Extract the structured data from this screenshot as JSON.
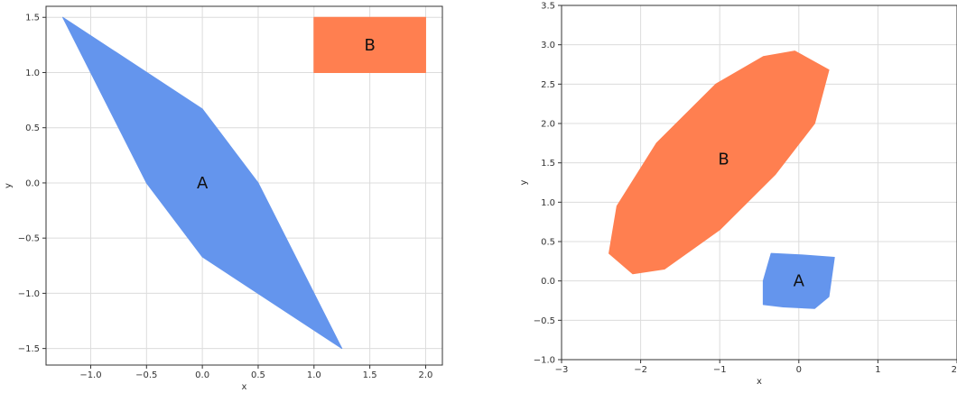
{
  "chart_data": [
    {
      "type": "area",
      "xlabel": "x",
      "ylabel": "y",
      "xlim": [
        -1.4,
        2.15
      ],
      "ylim": [
        -1.65,
        1.6
      ],
      "xticks": [
        -1.0,
        -0.5,
        0.0,
        0.5,
        1.0,
        1.5,
        2.0
      ],
      "xtick_labels": [
        "−1.0",
        "−0.5",
        "0.0",
        "0.5",
        "1.0",
        "1.5",
        "2.0"
      ],
      "yticks": [
        -1.5,
        -1.0,
        -0.5,
        0.0,
        0.5,
        1.0,
        1.5
      ],
      "ytick_labels": [
        "−1.5",
        "−1.0",
        "−0.5",
        "0.0",
        "0.5",
        "1.0",
        "1.5"
      ],
      "grid": true,
      "shapes": [
        {
          "label": "A",
          "color": "#6495ED",
          "label_at": [
            0.0,
            0.0
          ],
          "points": [
            [
              -1.25,
              1.5
            ],
            [
              0.0,
              0.67
            ],
            [
              0.5,
              0.0
            ],
            [
              1.25,
              -1.5
            ],
            [
              0.0,
              -0.67
            ],
            [
              -0.5,
              0.0
            ]
          ]
        },
        {
          "label": "B",
          "color": "#FF7F50",
          "label_at": [
            1.5,
            1.25
          ],
          "points": [
            [
              1.0,
              1.0
            ],
            [
              2.0,
              1.0
            ],
            [
              2.0,
              1.5
            ],
            [
              1.0,
              1.5
            ]
          ]
        }
      ]
    },
    {
      "type": "area",
      "xlabel": "x",
      "ylabel": "y",
      "xlim": [
        -3.0,
        2.0
      ],
      "ylim": [
        -1.0,
        3.5
      ],
      "xticks": [
        -3,
        -2,
        -1,
        0,
        1,
        2
      ],
      "xtick_labels": [
        "−3",
        "−2",
        "−1",
        "0",
        "1",
        "2"
      ],
      "yticks": [
        -1.0,
        -0.5,
        0.0,
        0.5,
        1.0,
        1.5,
        2.0,
        2.5,
        3.0,
        3.5
      ],
      "ytick_labels": [
        "−1.0",
        "−0.5",
        "0.0",
        "0.5",
        "1.0",
        "1.5",
        "2.0",
        "2.5",
        "3.0",
        "3.5"
      ],
      "grid": true,
      "shapes": [
        {
          "label": "B",
          "color": "#FF7F50",
          "label_at": [
            -0.95,
            1.55
          ],
          "points": [
            [
              -0.05,
              2.92
            ],
            [
              0.38,
              2.68
            ],
            [
              0.2,
              2.0
            ],
            [
              -0.3,
              1.35
            ],
            [
              -1.0,
              0.65
            ],
            [
              -1.7,
              0.15
            ],
            [
              -2.1,
              0.09
            ],
            [
              -2.4,
              0.35
            ],
            [
              -2.3,
              0.95
            ],
            [
              -1.8,
              1.75
            ],
            [
              -1.05,
              2.5
            ],
            [
              -0.45,
              2.85
            ]
          ]
        },
        {
          "label": "A",
          "color": "#6495ED",
          "label_at": [
            0.0,
            0.0
          ],
          "points": [
            [
              -0.35,
              0.35
            ],
            [
              0.05,
              0.33
            ],
            [
              0.45,
              0.3
            ],
            [
              0.38,
              -0.2
            ],
            [
              0.2,
              -0.35
            ],
            [
              -0.2,
              -0.33
            ],
            [
              -0.45,
              -0.3
            ],
            [
              -0.45,
              0.0
            ]
          ]
        }
      ]
    }
  ]
}
